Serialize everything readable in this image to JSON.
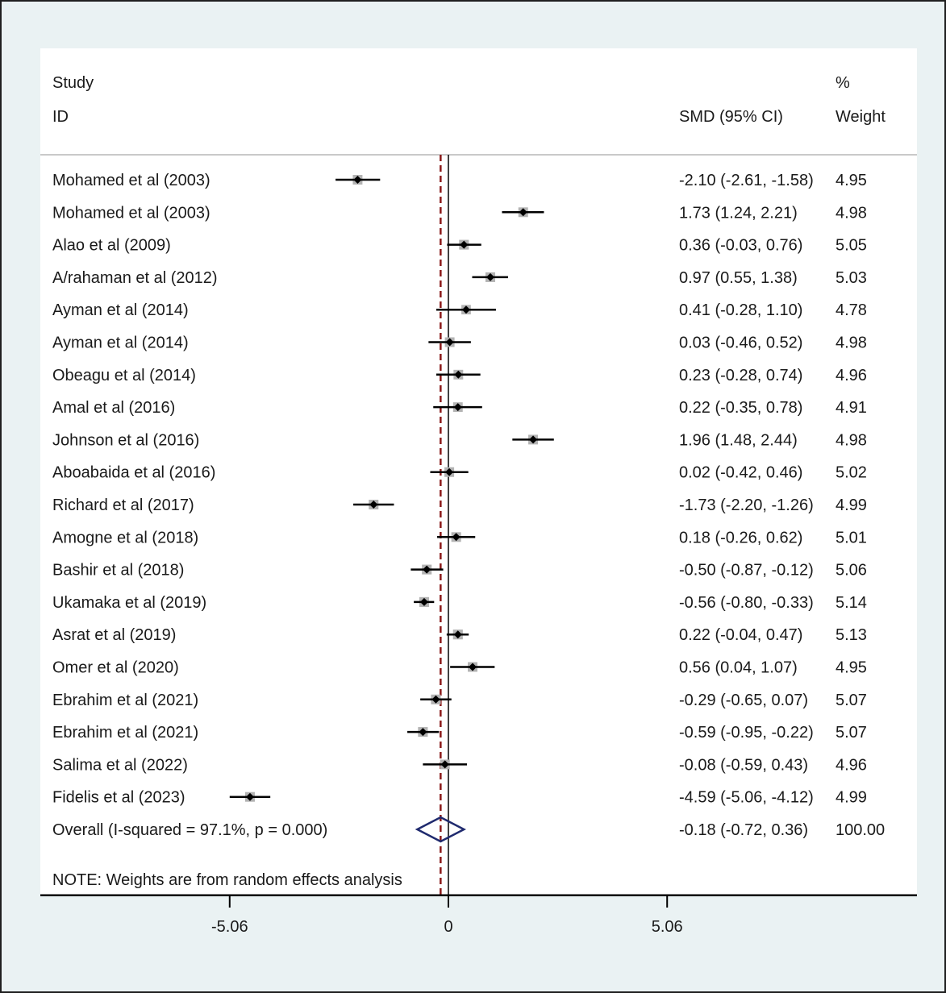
{
  "chart_data": {
    "type": "forest",
    "headers": {
      "study_line1": "Study",
      "study_line2": "ID",
      "effect": "SMD (95% CI)",
      "weight_line1": "%",
      "weight_line2": "Weight"
    },
    "xticks": [
      -5.06,
      0,
      5.06
    ],
    "xtick_labels": [
      "-5.06",
      "0",
      "5.06"
    ],
    "xlim": [
      -9.4,
      10.6
    ],
    "overall_line": -0.18,
    "studies": [
      {
        "id": "Mohamed et al (2003)",
        "smd": -2.1,
        "lo": -2.61,
        "hi": -1.58,
        "ci_text": "-2.10 (-2.61, -1.58)",
        "weight": 4.95,
        "weight_text": "4.95"
      },
      {
        "id": "Mohamed et al (2003)",
        "smd": 1.73,
        "lo": 1.24,
        "hi": 2.21,
        "ci_text": "1.73 (1.24, 2.21)",
        "weight": 4.98,
        "weight_text": "4.98"
      },
      {
        "id": "Alao et al (2009)",
        "smd": 0.36,
        "lo": -0.03,
        "hi": 0.76,
        "ci_text": "0.36 (-0.03, 0.76)",
        "weight": 5.05,
        "weight_text": "5.05"
      },
      {
        "id": "A/rahaman et al (2012)",
        "smd": 0.97,
        "lo": 0.55,
        "hi": 1.38,
        "ci_text": "0.97 (0.55, 1.38)",
        "weight": 5.03,
        "weight_text": "5.03"
      },
      {
        "id": "Ayman et al (2014)",
        "smd": 0.41,
        "lo": -0.28,
        "hi": 1.1,
        "ci_text": "0.41 (-0.28, 1.10)",
        "weight": 4.78,
        "weight_text": "4.78"
      },
      {
        "id": "Ayman et al (2014)",
        "smd": 0.03,
        "lo": -0.46,
        "hi": 0.52,
        "ci_text": "0.03 (-0.46, 0.52)",
        "weight": 4.98,
        "weight_text": "4.98"
      },
      {
        "id": "Obeagu et al (2014)",
        "smd": 0.23,
        "lo": -0.28,
        "hi": 0.74,
        "ci_text": "0.23 (-0.28, 0.74)",
        "weight": 4.96,
        "weight_text": "4.96"
      },
      {
        "id": "Amal et al (2016)",
        "smd": 0.22,
        "lo": -0.35,
        "hi": 0.78,
        "ci_text": "0.22 (-0.35, 0.78)",
        "weight": 4.91,
        "weight_text": "4.91"
      },
      {
        "id": "Johnson et al (2016)",
        "smd": 1.96,
        "lo": 1.48,
        "hi": 2.44,
        "ci_text": "1.96 (1.48, 2.44)",
        "weight": 4.98,
        "weight_text": "4.98"
      },
      {
        "id": "Aboabaida et al (2016)",
        "smd": 0.02,
        "lo": -0.42,
        "hi": 0.46,
        "ci_text": "0.02 (-0.42, 0.46)",
        "weight": 5.02,
        "weight_text": "5.02"
      },
      {
        "id": "Richard et al (2017)",
        "smd": -1.73,
        "lo": -2.2,
        "hi": -1.26,
        "ci_text": "-1.73 (-2.20, -1.26)",
        "weight": 4.99,
        "weight_text": "4.99"
      },
      {
        "id": "Amogne et al (2018)",
        "smd": 0.18,
        "lo": -0.26,
        "hi": 0.62,
        "ci_text": "0.18 (-0.26, 0.62)",
        "weight": 5.01,
        "weight_text": "5.01"
      },
      {
        "id": "Bashir et al (2018)",
        "smd": -0.5,
        "lo": -0.87,
        "hi": -0.12,
        "ci_text": "-0.50 (-0.87, -0.12)",
        "weight": 5.06,
        "weight_text": "5.06"
      },
      {
        "id": "Ukamaka et al (2019)",
        "smd": -0.56,
        "lo": -0.8,
        "hi": -0.33,
        "ci_text": "-0.56 (-0.80, -0.33)",
        "weight": 5.14,
        "weight_text": "5.14"
      },
      {
        "id": "Asrat et al (2019)",
        "smd": 0.22,
        "lo": -0.04,
        "hi": 0.47,
        "ci_text": "0.22 (-0.04, 0.47)",
        "weight": 5.13,
        "weight_text": "5.13"
      },
      {
        "id": "Omer et al (2020)",
        "smd": 0.56,
        "lo": 0.04,
        "hi": 1.07,
        "ci_text": "0.56 (0.04, 1.07)",
        "weight": 4.95,
        "weight_text": "4.95"
      },
      {
        "id": "Ebrahim et al (2021)",
        "smd": -0.29,
        "lo": -0.65,
        "hi": 0.07,
        "ci_text": "-0.29 (-0.65, 0.07)",
        "weight": 5.07,
        "weight_text": "5.07"
      },
      {
        "id": "Ebrahim et al (2021)",
        "smd": -0.59,
        "lo": -0.95,
        "hi": -0.22,
        "ci_text": "-0.59 (-0.95, -0.22)",
        "weight": 5.07,
        "weight_text": "5.07"
      },
      {
        "id": "Salima et al (2022)",
        "smd": -0.08,
        "lo": -0.59,
        "hi": 0.43,
        "ci_text": "-0.08 (-0.59, 0.43)",
        "weight": 4.96,
        "weight_text": "4.96"
      },
      {
        "id": "Fidelis et al (2023)",
        "smd": -4.59,
        "lo": -5.06,
        "hi": -4.12,
        "ci_text": "-4.59 (-5.06, -4.12)",
        "weight": 4.99,
        "weight_text": "4.99"
      }
    ],
    "overall": {
      "label": "Overall  (I-squared = 97.1%, p = 0.000)",
      "smd": -0.18,
      "lo": -0.72,
      "hi": 0.36,
      "ci_text": "-0.18 (-0.72, 0.36)",
      "weight_text": "100.00"
    },
    "note": "NOTE: Weights are from random effects analysis",
    "colors": {
      "frame_bg": "#eaf2f3",
      "marker": "#000000",
      "weight_box": "#b3b3b3",
      "overall_line": "#8b1a1a",
      "diamond": "#1f2a6e",
      "divider": "#c9c9c9"
    }
  }
}
